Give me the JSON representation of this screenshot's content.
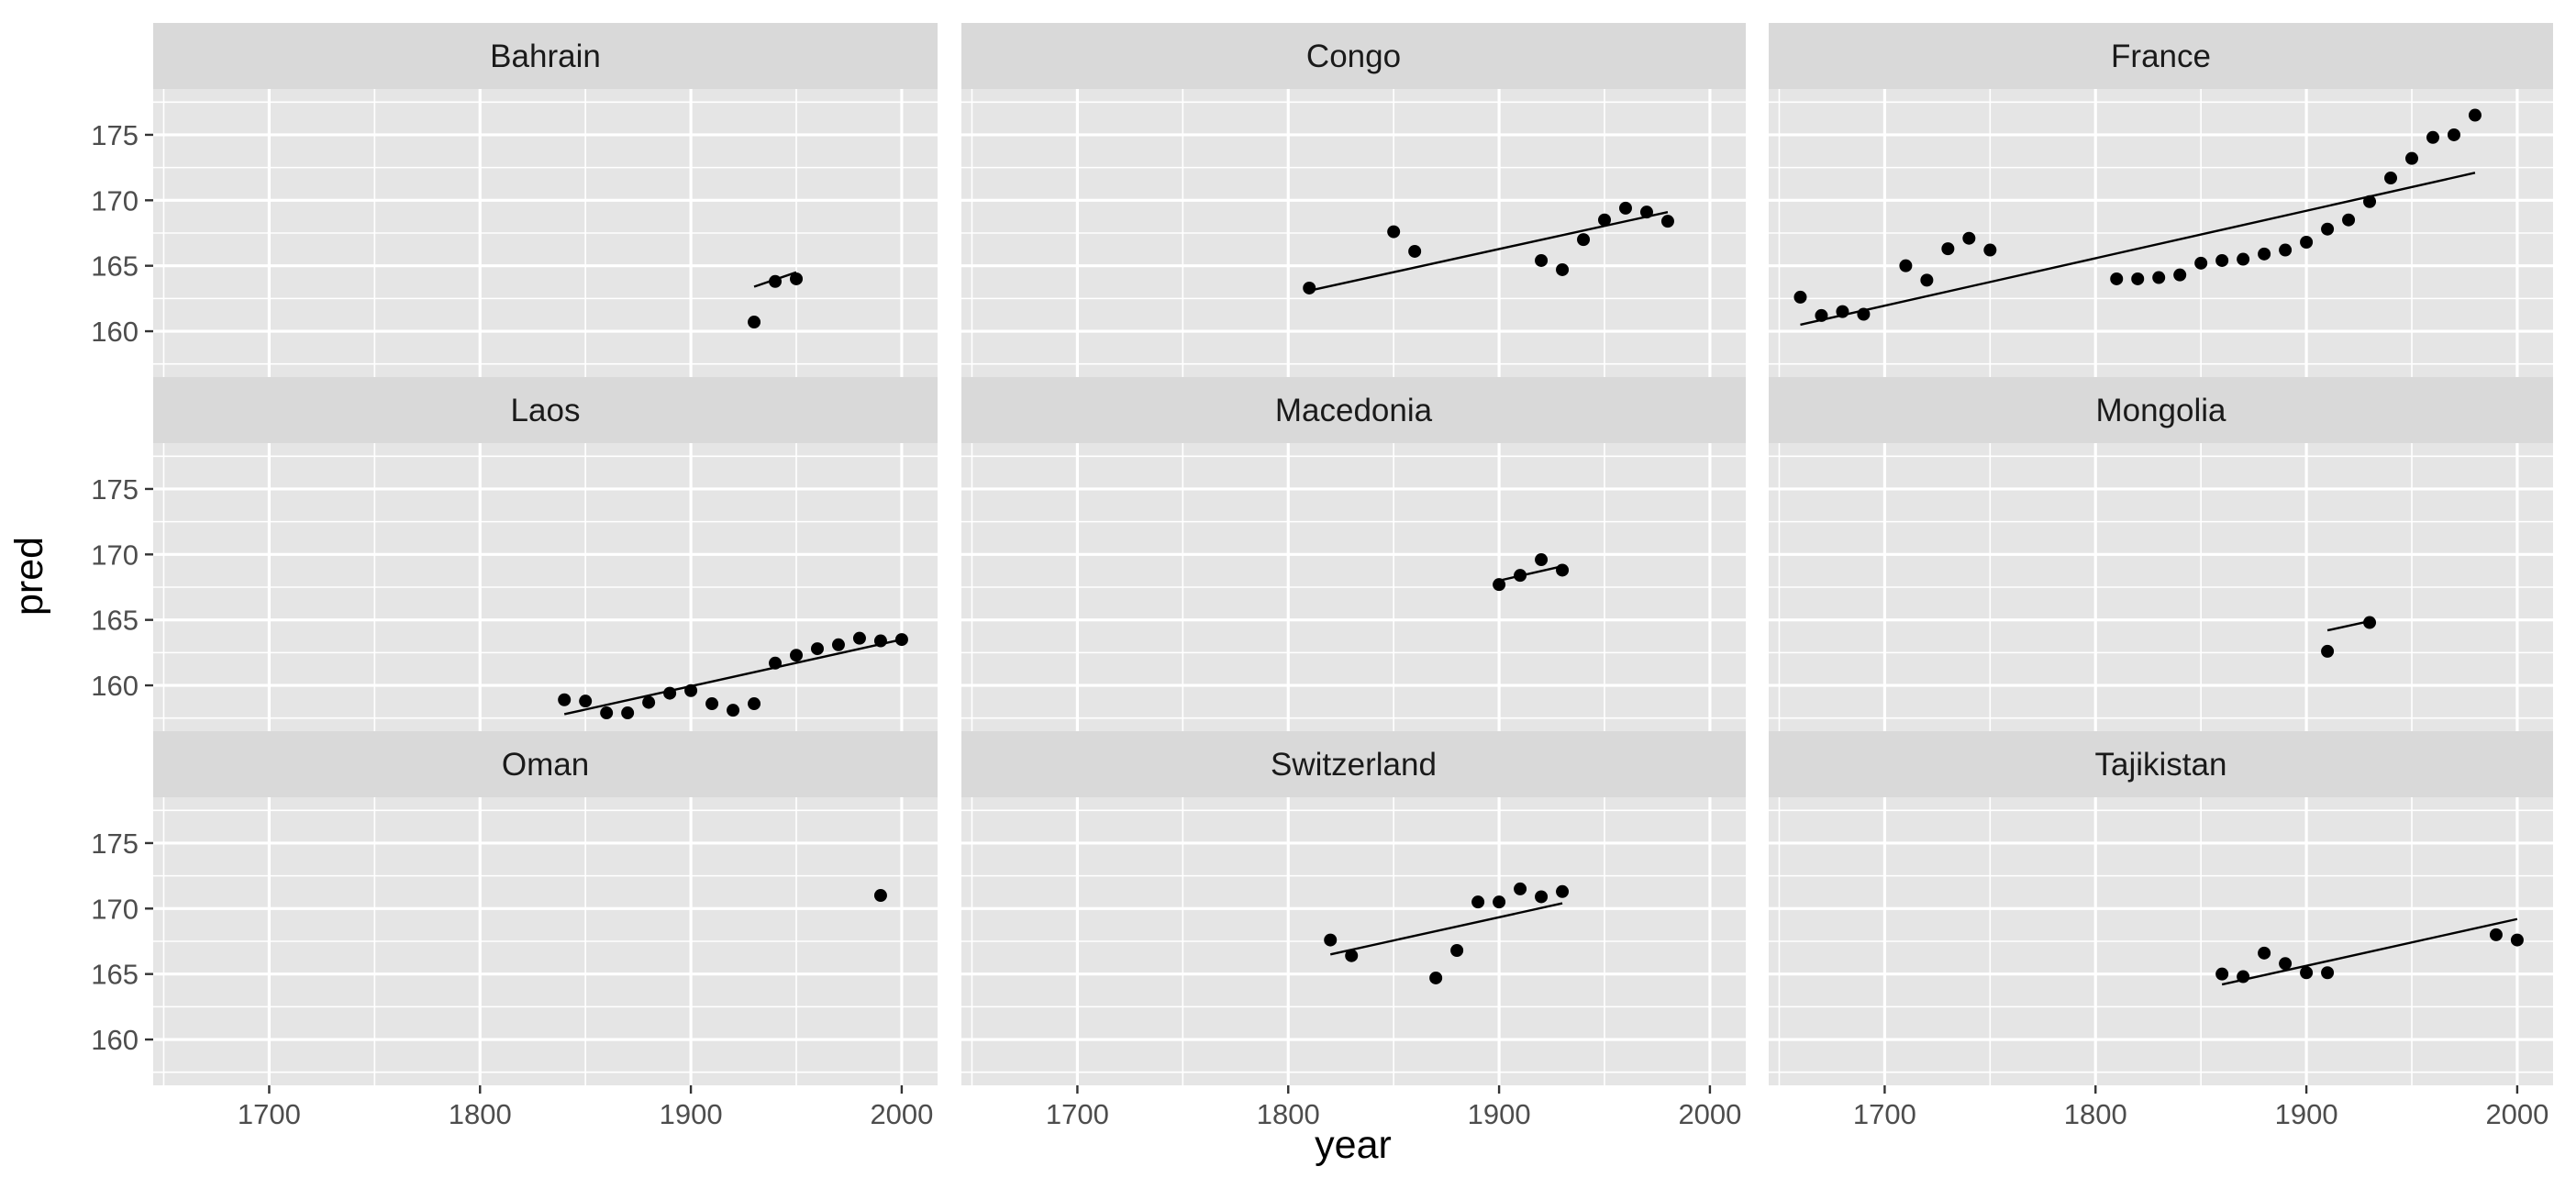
{
  "chart_data": {
    "type": "scatter",
    "xlabel": "year",
    "ylabel": "pred",
    "xlim": [
      1645,
      2017
    ],
    "ylim": [
      156.5,
      178.5
    ],
    "xticks": [
      1700,
      1800,
      1900,
      2000
    ],
    "yticks": [
      160,
      165,
      170,
      175
    ],
    "grid": true,
    "colors": {
      "panel_bg": "#e5e5e5",
      "strip_bg": "#d9d9d9",
      "grid": "#ffffff",
      "points": "#000000",
      "fit_line": "#000000"
    },
    "panels": [
      {
        "name": "Bahrain",
        "x": [
          1930,
          1940,
          1950
        ],
        "y": [
          160.7,
          163.8,
          164.0
        ],
        "fit": [
          [
            1930,
            163.4
          ],
          [
            1950,
            164.5
          ]
        ]
      },
      {
        "name": "Congo",
        "x": [
          1810,
          1850,
          1860,
          1920,
          1930,
          1940,
          1950,
          1960,
          1970,
          1980
        ],
        "y": [
          163.3,
          167.6,
          166.1,
          165.4,
          164.7,
          167.0,
          168.5,
          169.4,
          169.1,
          168.4
        ],
        "fit": [
          [
            1810,
            163.1
          ],
          [
            1980,
            169.1
          ]
        ]
      },
      {
        "name": "France",
        "x": [
          1660,
          1670,
          1680,
          1690,
          1710,
          1720,
          1730,
          1740,
          1750,
          1810,
          1820,
          1830,
          1840,
          1850,
          1860,
          1870,
          1880,
          1890,
          1900,
          1910,
          1920,
          1930,
          1940,
          1950,
          1960,
          1970,
          1980
        ],
        "y": [
          162.6,
          161.2,
          161.5,
          161.3,
          165.0,
          163.9,
          166.3,
          167.1,
          166.2,
          164.0,
          164.0,
          164.1,
          164.3,
          165.2,
          165.4,
          165.5,
          165.9,
          166.2,
          166.8,
          167.8,
          168.5,
          169.9,
          171.7,
          173.2,
          174.8,
          175.0,
          176.5
        ],
        "fit": [
          [
            1660,
            160.5
          ],
          [
            1980,
            172.1
          ]
        ]
      },
      {
        "name": "Laos",
        "x": [
          1840,
          1850,
          1860,
          1870,
          1880,
          1890,
          1900,
          1910,
          1920,
          1930,
          1940,
          1950,
          1960,
          1970,
          1980,
          1990,
          2000
        ],
        "y": [
          158.9,
          158.8,
          157.9,
          157.9,
          158.7,
          159.4,
          159.6,
          158.6,
          158.1,
          158.6,
          161.7,
          162.3,
          162.8,
          163.1,
          163.6,
          163.4,
          163.5
        ],
        "fit": [
          [
            1840,
            157.8
          ],
          [
            2000,
            163.5
          ]
        ]
      },
      {
        "name": "Macedonia",
        "x": [
          1900,
          1910,
          1920,
          1930
        ],
        "y": [
          167.7,
          168.4,
          169.6,
          168.8
        ],
        "fit": [
          [
            1900,
            168.0
          ],
          [
            1930,
            169.1
          ]
        ]
      },
      {
        "name": "Mongolia",
        "x": [
          1910,
          1930
        ],
        "y": [
          162.6,
          164.8
        ],
        "fit": [
          [
            1910,
            164.2
          ],
          [
            1930,
            164.9
          ]
        ]
      },
      {
        "name": "Oman",
        "x": [
          1990
        ],
        "y": [
          171.0
        ],
        "fit": []
      },
      {
        "name": "Switzerland",
        "x": [
          1820,
          1830,
          1870,
          1880,
          1890,
          1900,
          1910,
          1920,
          1930
        ],
        "y": [
          167.6,
          166.4,
          164.7,
          166.8,
          170.5,
          170.5,
          171.5,
          170.9,
          171.3
        ],
        "fit": [
          [
            1820,
            166.5
          ],
          [
            1930,
            170.4
          ]
        ]
      },
      {
        "name": "Tajikistan",
        "x": [
          1860,
          1870,
          1880,
          1890,
          1900,
          1910,
          1990,
          2000
        ],
        "y": [
          165.0,
          164.8,
          166.6,
          165.8,
          165.1,
          165.1,
          168.0,
          167.6
        ],
        "fit": [
          [
            1860,
            164.2
          ],
          [
            2000,
            169.2
          ]
        ]
      }
    ]
  }
}
